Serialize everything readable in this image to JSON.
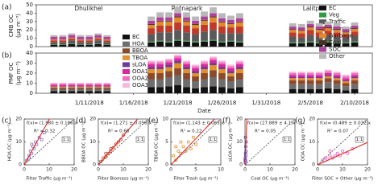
{
  "chart_data": [
    {
      "type": "stacked-bar",
      "panel": "(a)",
      "ylabel": "CMB OC",
      "yunit": "(μg m⁻³)",
      "sites": [
        "Dhulikhel",
        "Ratnapark",
        "Lalitpur"
      ],
      "x": [
        "1/7/2018",
        "1/8/2018",
        "1/9/2018",
        "1/10/2018",
        "1/11/2018",
        "1/12/2018",
        "1/13/2018",
        "1/18/2018",
        "1/19/2018",
        "1/20/2018",
        "1/21/2018",
        "1/22/2018",
        "1/23/2018",
        "1/24/2018",
        "1/25/2018",
        "1/26/2018",
        "1/27/2018",
        "1/28/2018",
        "2/3/2018",
        "2/4/2018",
        "2/5/2018",
        "2/6/2018",
        "2/7/2018",
        "2/8/2018",
        "2/9/2018",
        "2/10/2018"
      ],
      "xlim": [
        "1/5/2018",
        "2/12/2018"
      ],
      "ylim": [
        0,
        50
      ],
      "yticks": [
        0,
        10,
        20,
        30,
        40,
        50
      ],
      "series": [
        {
          "name": "EC",
          "color": "#111111",
          "values": [
            2,
            2,
            3,
            2,
            2,
            3,
            2,
            5,
            6,
            5,
            7,
            6,
            5,
            6,
            7,
            5,
            6,
            5,
            4,
            4,
            5,
            4,
            5,
            4,
            4,
            5
          ]
        },
        {
          "name": "Veg",
          "color": "#2e9e3e",
          "values": [
            0.5,
            0.5,
            0.5,
            0.5,
            0.5,
            0.5,
            0.5,
            1,
            1,
            1,
            1,
            1,
            1,
            1,
            1,
            1,
            1,
            1,
            1,
            1,
            1,
            1,
            1,
            1,
            1,
            1
          ]
        },
        {
          "name": "Traffic",
          "color": "#5a5a5a",
          "values": [
            3,
            3,
            4,
            3,
            3,
            4,
            3,
            9,
            10,
            11,
            12,
            10,
            9,
            11,
            12,
            10,
            9,
            10,
            7,
            6,
            8,
            7,
            8,
            7,
            6,
            7
          ]
        },
        {
          "name": "Biomass",
          "color": "#c0392b",
          "values": [
            2,
            2,
            2,
            2,
            2,
            2,
            2,
            7,
            8,
            8,
            9,
            8,
            7,
            8,
            9,
            8,
            7,
            8,
            5,
            5,
            6,
            5,
            5,
            5,
            4,
            5
          ]
        },
        {
          "name": "Garbage",
          "color": "#e08a2c",
          "values": [
            1,
            1,
            1,
            1,
            1,
            1,
            1,
            4,
            5,
            5,
            6,
            5,
            4,
            5,
            6,
            5,
            4,
            5,
            3,
            3,
            3,
            3,
            3,
            3,
            2,
            3
          ]
        },
        {
          "name": "Coal",
          "color": "#4a3020",
          "values": [
            0.3,
            0.3,
            0.3,
            0.3,
            0.3,
            0.3,
            0.3,
            1,
            1,
            1,
            1,
            1,
            1,
            1,
            1,
            1,
            1,
            1,
            1,
            1,
            1,
            1,
            1,
            1,
            1,
            1
          ]
        },
        {
          "name": "SOC",
          "color": "#b0409e",
          "values": [
            3,
            3,
            3,
            3,
            3,
            3,
            3,
            4,
            4,
            4,
            4,
            4,
            4,
            4,
            4,
            4,
            4,
            4,
            3,
            3,
            3,
            3,
            3,
            3,
            3,
            3
          ]
        },
        {
          "name": "Other",
          "color": "#b8b8b8",
          "values": [
            2,
            2,
            2,
            2,
            2,
            2,
            2,
            5,
            6,
            6,
            7,
            6,
            5,
            6,
            7,
            6,
            5,
            6,
            4,
            4,
            4,
            4,
            4,
            4,
            3,
            4
          ]
        }
      ]
    },
    {
      "type": "stacked-bar",
      "panel": "(b)",
      "ylabel": "PMF OC",
      "yunit": "(μg m⁻³)",
      "xlabel": "Date",
      "x": [
        "1/7/2018",
        "1/8/2018",
        "1/9/2018",
        "1/10/2018",
        "1/11/2018",
        "1/12/2018",
        "1/13/2018",
        "1/18/2018",
        "1/19/2018",
        "1/20/2018",
        "1/21/2018",
        "1/22/2018",
        "1/23/2018",
        "1/24/2018",
        "1/25/2018",
        "1/26/2018",
        "1/27/2018",
        "1/28/2018",
        "2/3/2018",
        "2/4/2018",
        "2/5/2018",
        "2/6/2018",
        "2/7/2018",
        "2/8/2018",
        "2/9/2018",
        "2/10/2018"
      ],
      "xlim": [
        "1/5/2018",
        "2/12/2018"
      ],
      "ylim": [
        0,
        40
      ],
      "yticks": [
        0,
        10,
        20,
        30,
        40
      ],
      "xticks": [
        "1/11/2018",
        "1/16/2018",
        "1/21/2018",
        "1/26/2018",
        "1/31/2018",
        "2/5/2018",
        "2/10/2018"
      ],
      "series": [
        {
          "name": "BC",
          "color": "#111111",
          "values": [
            2,
            2,
            2,
            2,
            2,
            2,
            2,
            6,
            6,
            7,
            8,
            6,
            5,
            6,
            7,
            6,
            5,
            6,
            4,
            4,
            4,
            4,
            5,
            4,
            3,
            4
          ]
        },
        {
          "name": "HOA",
          "color": "#6e6e6e",
          "values": [
            2,
            2,
            2,
            2,
            2,
            2,
            2,
            8,
            8,
            9,
            10,
            8,
            7,
            8,
            9,
            8,
            7,
            8,
            5,
            5,
            5,
            5,
            6,
            5,
            4,
            5
          ]
        },
        {
          "name": "BBOA",
          "color": "#8b4a2b",
          "values": [
            1.5,
            1.5,
            1.5,
            1.5,
            1.5,
            1.5,
            1.5,
            6,
            6,
            6,
            7,
            6,
            5,
            6,
            7,
            6,
            5,
            6,
            4,
            4,
            4,
            4,
            4,
            4,
            3,
            4
          ]
        },
        {
          "name": "TBOA",
          "color": "#e0902c",
          "values": [
            1,
            1,
            1,
            1,
            1,
            1,
            1,
            4,
            4,
            4,
            5,
            4,
            3,
            4,
            5,
            4,
            3,
            4,
            2,
            2,
            2,
            2,
            2,
            2,
            2,
            2
          ]
        },
        {
          "name": "sLOA",
          "color": "#6a3d9a",
          "values": [
            0.5,
            0.5,
            0.5,
            0.5,
            0.5,
            0.5,
            0.5,
            2,
            2,
            2,
            2,
            2,
            2,
            2,
            2,
            2,
            2,
            2,
            1,
            1,
            1,
            1,
            1,
            1,
            1,
            1
          ]
        },
        {
          "name": "OOA1",
          "color": "#d6279b",
          "values": [
            1.5,
            1.5,
            1.5,
            1.5,
            1.5,
            1.5,
            1.5,
            3,
            3,
            3,
            3,
            3,
            3,
            3,
            3,
            3,
            3,
            3,
            2,
            2,
            2,
            2,
            2,
            2,
            2,
            2
          ]
        },
        {
          "name": "OOA2",
          "color": "#f06fc0",
          "values": [
            1,
            1,
            1,
            1,
            1,
            1,
            1,
            2,
            2,
            2,
            2,
            2,
            2,
            2,
            2,
            2,
            2,
            2,
            2,
            2,
            2,
            2,
            2,
            2,
            2,
            2
          ]
        },
        {
          "name": "OOA3",
          "color": "#f7b8dc",
          "values": [
            1,
            1,
            1,
            1,
            1,
            1,
            1,
            1.5,
            1.5,
            1.5,
            1.5,
            1.5,
            1.5,
            1.5,
            1.5,
            1.5,
            1.5,
            1.5,
            1.5,
            1.5,
            1.5,
            1.5,
            1.5,
            1.5,
            1.5,
            1.5
          ]
        }
      ]
    },
    {
      "type": "scatter",
      "panel": "(c)",
      "xlabel": "Filter Traffic (μg m⁻³)",
      "ylabel": "HOA OC (μg m⁻³)",
      "xlim": [
        0,
        20
      ],
      "ylim": [
        0,
        20
      ],
      "xticks": [
        0,
        10,
        20
      ],
      "yticks": [
        0,
        10,
        20
      ],
      "color": "#8a6fb0",
      "x": [
        1,
        2,
        2.5,
        3,
        3.5,
        4,
        4.5,
        5,
        6,
        7,
        8,
        2,
        3
      ],
      "y": [
        2,
        4,
        6,
        5,
        8,
        7,
        10,
        9,
        12,
        11,
        14,
        3,
        9
      ],
      "fit": "f(x)= (1.980 ± 0.186)x",
      "slope": 1.98,
      "r2": "R² = 0.32",
      "one_to_one": "1:1"
    },
    {
      "type": "scatter",
      "panel": "(d)",
      "xlabel": "Filter Biomass (μg m⁻³)",
      "ylabel": "BBOA OC (μg m⁻³)",
      "xlim": [
        0,
        20
      ],
      "ylim": [
        0,
        20
      ],
      "xticks": [
        0,
        10,
        20
      ],
      "yticks": [
        0,
        10,
        20
      ],
      "color": "#b5472b",
      "x": [
        1,
        2,
        3,
        4,
        5,
        6,
        7,
        8,
        9,
        10,
        3,
        5
      ],
      "y": [
        1.5,
        3,
        3.5,
        5,
        7,
        7.5,
        9,
        10,
        11,
        13,
        5,
        6
      ],
      "fit": "f(x)= (1.271 ± 0.058)x",
      "slope": 1.271,
      "r2": "R² = 0.66",
      "one_to_one": "1:1"
    },
    {
      "type": "scatter",
      "panel": "(e)",
      "xlabel": "Filter Trash (μg m⁻³)",
      "ylabel": "TBOA OC (μg m⁻³)",
      "xlim": [
        0,
        10
      ],
      "ylim": [
        0,
        10
      ],
      "xticks": [
        0,
        5,
        10
      ],
      "yticks": [
        0,
        5,
        10
      ],
      "color": "#e0902c",
      "x": [
        0.5,
        1,
        1.5,
        2,
        2.5,
        3,
        3.5,
        4,
        4.5,
        5,
        1,
        2
      ],
      "y": [
        2,
        1,
        3,
        2.5,
        4,
        3,
        5,
        3.5,
        6,
        4.5,
        4,
        5
      ],
      "fit": "f(x)= (1.143 ± 0.063)x",
      "slope": 1.143,
      "r2": "R² = 0.22",
      "one_to_one": "1:1"
    },
    {
      "type": "scatter",
      "panel": "(f)",
      "xlabel": "Coal OC (μg m⁻³)",
      "ylabel": "sLOA OC (μg m⁻³)",
      "xlim": [
        0,
        20
      ],
      "ylim": [
        0,
        20
      ],
      "xticks": [
        0,
        10,
        20
      ],
      "yticks": [
        0,
        10,
        20
      ],
      "color": "#6a3d9a",
      "x": [
        0.1,
        0.1,
        0.2,
        0.2,
        0.3,
        0.3,
        0.4,
        0.5,
        0.2,
        0.1
      ],
      "y": [
        1,
        3,
        2,
        5,
        4,
        8,
        6,
        10,
        12,
        2
      ],
      "fit": "f(x)= (27.889 ± 4.1)x",
      "slope": 27.889,
      "r2": "R² = 0.05",
      "one_to_one": "1:1"
    },
    {
      "type": "scatter",
      "panel": "(g)",
      "xlabel": "Filter SOC + Other (μg m⁻³)",
      "ylabel": "OOA OC (μg m⁻³)",
      "xlim": [
        0,
        20
      ],
      "ylim": [
        0,
        20
      ],
      "xticks": [
        0,
        10,
        20
      ],
      "yticks": [
        0,
        10,
        20
      ],
      "color": "#e86bbd",
      "x": [
        2,
        3,
        4,
        5,
        6,
        7,
        8,
        9,
        10,
        12,
        14,
        5
      ],
      "y": [
        2,
        3,
        2.5,
        4,
        3,
        4,
        5,
        4,
        6,
        5,
        7,
        6
      ],
      "fit": "f(x)= (0.489 ± 0.032)x",
      "slope": 0.489,
      "r2": "R² = 0.07",
      "one_to_one": "1:1"
    }
  ]
}
